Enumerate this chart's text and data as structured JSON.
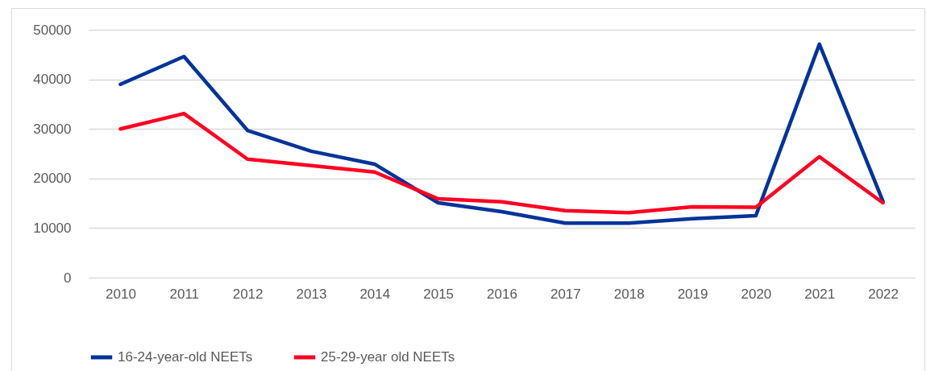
{
  "chart_data": {
    "type": "line",
    "categories": [
      "2010",
      "2011",
      "2012",
      "2013",
      "2014",
      "2015",
      "2016",
      "2017",
      "2018",
      "2019",
      "2020",
      "2021",
      "2022"
    ],
    "series": [
      {
        "name": "16-24-year-old NEETs",
        "color": "#003399",
        "values": [
          39000,
          44600,
          29700,
          25500,
          22900,
          15100,
          13300,
          11000,
          11000,
          11900,
          12500,
          47100,
          15400
        ]
      },
      {
        "name": "25-29-year old NEETs",
        "color": "#ff0022",
        "values": [
          30000,
          33100,
          23900,
          22600,
          21300,
          15900,
          15300,
          13500,
          13100,
          14300,
          14200,
          24400,
          15100
        ]
      }
    ],
    "ylim": [
      0,
      50000
    ],
    "yticks": [
      0,
      10000,
      20000,
      30000,
      40000,
      50000
    ],
    "grid": "y",
    "legend": "bottom",
    "marker": "none",
    "line_style": "solid"
  }
}
